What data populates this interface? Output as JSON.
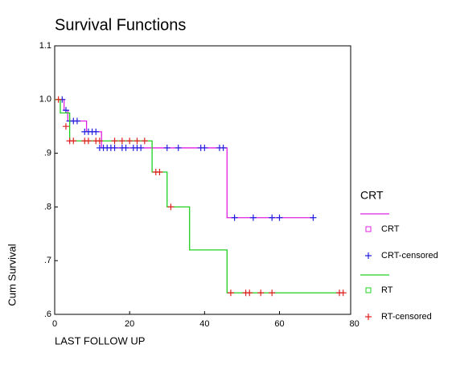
{
  "chart_data": {
    "type": "line",
    "title": "Survival Functions",
    "xlabel": "LAST FOLLOW UP",
    "ylabel": "Cum Survival",
    "legend_title": "CRT",
    "legend": "right",
    "xlim": [
      0,
      79
    ],
    "ylim": [
      0.6,
      1.1
    ],
    "xticks": [
      0,
      20,
      40,
      60,
      80
    ],
    "yticks": [
      {
        "value": 1.1,
        "label": "1.1"
      },
      {
        "value": 1.0,
        "label": "1.0"
      },
      {
        "value": 0.9,
        "label": ".9"
      },
      {
        "value": 0.8,
        "label": ".8"
      },
      {
        "value": 0.7,
        "label": ".7"
      },
      {
        "value": 0.6,
        "label": ".6"
      }
    ],
    "series": [
      {
        "name": "CRT",
        "type": "line",
        "color": "#e020e0",
        "x": [
          0,
          2.5,
          2.5,
          3.5,
          3.5,
          8.5,
          8.5,
          12.5,
          12.5,
          46,
          46,
          69
        ],
        "values": [
          1.0,
          1.0,
          0.98,
          0.98,
          0.96,
          0.96,
          0.94,
          0.94,
          0.91,
          0.91,
          0.78,
          0.78
        ]
      },
      {
        "name": "CRT-censored",
        "type": "scatter",
        "color": "#2020e0",
        "x": [
          2,
          3,
          4,
          5,
          6,
          8,
          9,
          10,
          11,
          12,
          13,
          14,
          15,
          16,
          18,
          19,
          21,
          22,
          23,
          30,
          33,
          39,
          40,
          44,
          45,
          48,
          53,
          58,
          60,
          69
        ],
        "values": [
          1.0,
          0.98,
          0.96,
          0.96,
          0.96,
          0.94,
          0.94,
          0.94,
          0.94,
          0.91,
          0.91,
          0.91,
          0.91,
          0.91,
          0.91,
          0.91,
          0.91,
          0.91,
          0.91,
          0.91,
          0.91,
          0.91,
          0.91,
          0.91,
          0.91,
          0.78,
          0.78,
          0.78,
          0.78,
          0.78
        ]
      },
      {
        "name": "RT",
        "type": "line",
        "color": "#20d020",
        "x": [
          0,
          1.5,
          1.5,
          4,
          4,
          26,
          26,
          30,
          30,
          36,
          36,
          46,
          46,
          76
        ],
        "values": [
          1.0,
          1.0,
          0.975,
          0.975,
          0.923,
          0.923,
          0.865,
          0.865,
          0.8,
          0.8,
          0.72,
          0.72,
          0.64,
          0.64
        ]
      },
      {
        "name": "RT-censored",
        "type": "scatter",
        "color": "#e02020",
        "x": [
          1,
          3,
          4,
          5,
          8,
          9,
          11,
          12,
          16,
          18,
          20,
          22,
          24,
          27,
          28,
          31,
          47,
          51,
          52,
          55,
          58,
          76,
          77
        ],
        "values": [
          1.0,
          0.95,
          0.923,
          0.923,
          0.923,
          0.923,
          0.923,
          0.923,
          0.923,
          0.923,
          0.923,
          0.923,
          0.923,
          0.865,
          0.865,
          0.8,
          0.64,
          0.64,
          0.64,
          0.64,
          0.64,
          0.64,
          0.64
        ]
      }
    ]
  }
}
